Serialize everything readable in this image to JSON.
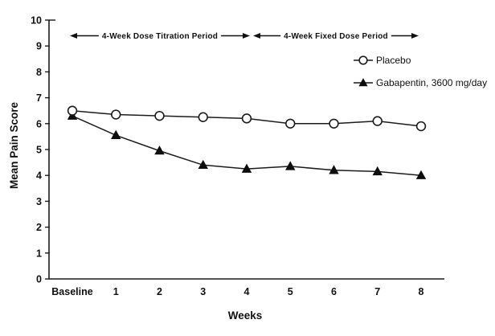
{
  "chart_data": {
    "type": "line",
    "title": "",
    "xlabel": "Weeks",
    "ylabel": "Mean Pain Score",
    "ylim": [
      0,
      10
    ],
    "y_ticks": [
      0,
      1,
      2,
      3,
      4,
      5,
      6,
      7,
      8,
      9,
      10
    ],
    "categories": [
      "Baseline",
      "1",
      "2",
      "3",
      "4",
      "5",
      "6",
      "7",
      "8"
    ],
    "series": [
      {
        "name": "Placebo",
        "marker": "open-circle",
        "values": [
          6.5,
          6.35,
          6.3,
          6.25,
          6.2,
          6.0,
          6.0,
          6.1,
          5.9
        ]
      },
      {
        "name": "Gabapentin, 3600 mg/day",
        "marker": "filled-triangle",
        "values": [
          6.3,
          5.55,
          4.95,
          4.4,
          4.25,
          4.35,
          4.2,
          4.15,
          4.0
        ]
      }
    ],
    "annotations": [
      {
        "label": "4-Week Dose Titration Period",
        "x_start": "Baseline",
        "x_end": "4"
      },
      {
        "label": "4-Week Fixed Dose Period",
        "x_start": "4",
        "x_end": "8"
      }
    ],
    "legend_position": "upper right",
    "grid": false,
    "colors": {
      "line": "#1c1c1c",
      "text": "#111111",
      "background": "#ffffff"
    }
  }
}
